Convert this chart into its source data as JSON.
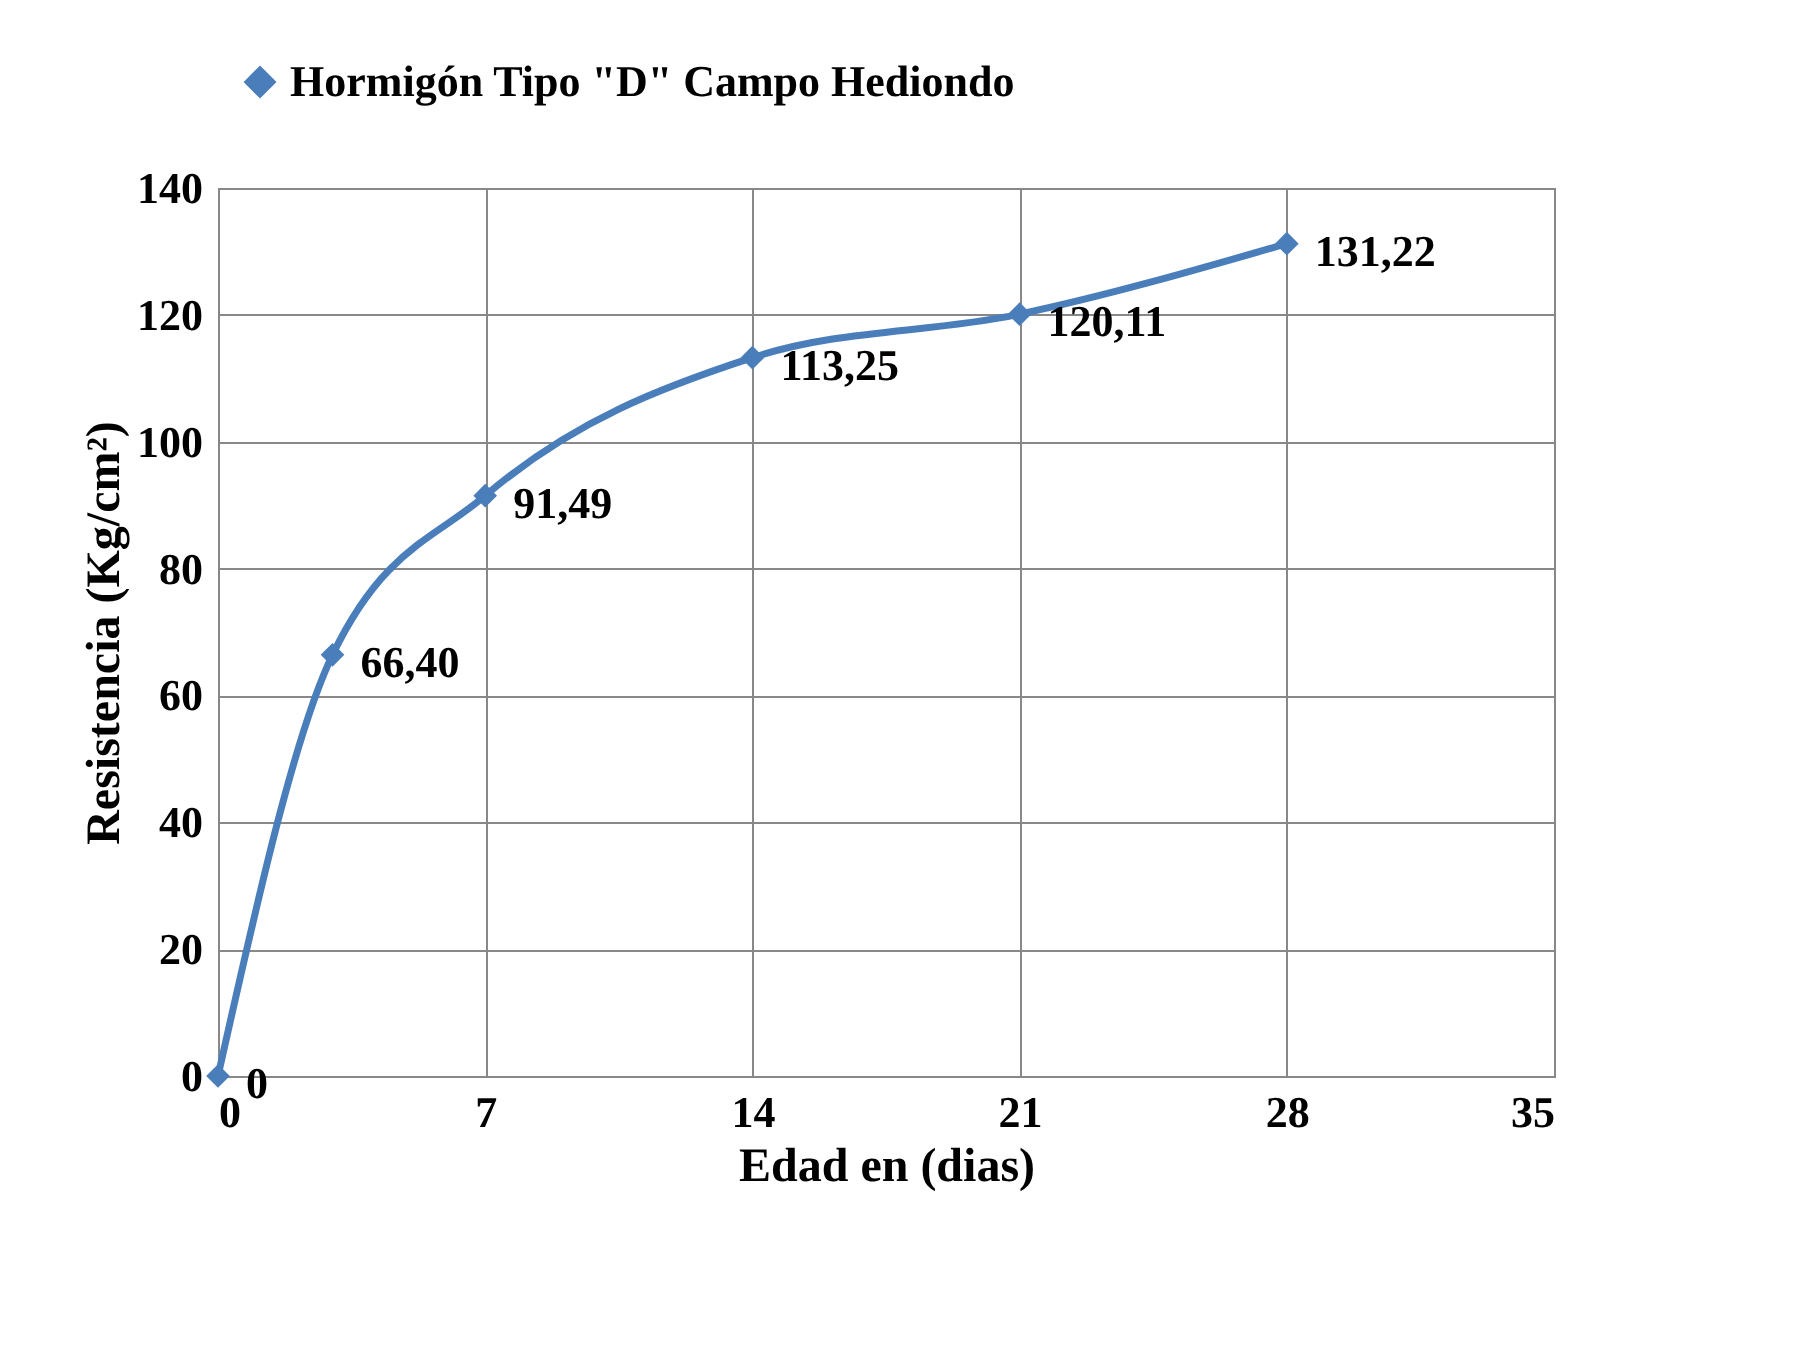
{
  "chart_data": {
    "type": "line",
    "xlabel": "Edad en (dias)",
    "ylabel": "Resistencia (Kg/cm²)",
    "x": [
      0,
      3,
      7,
      14,
      21,
      28
    ],
    "series": [
      {
        "name": "Hormigón Tipo \"D\" Campo Hediondo",
        "color": "#4a7ebb",
        "values": [
          0,
          66.4,
          91.49,
          113.25,
          120.11,
          131.22
        ],
        "value_labels": [
          "0",
          "66,40",
          "91,49",
          "113,25",
          "120,11",
          "131,22"
        ]
      }
    ],
    "xlim": [
      0,
      35
    ],
    "xticks": [
      0,
      7,
      14,
      21,
      28,
      35
    ],
    "ylim": [
      0,
      140
    ],
    "yticks": [
      0,
      20,
      40,
      60,
      80,
      100,
      120,
      140
    ],
    "grid": true,
    "legend": "top",
    "marker": "diamond",
    "line_style": "solid"
  }
}
